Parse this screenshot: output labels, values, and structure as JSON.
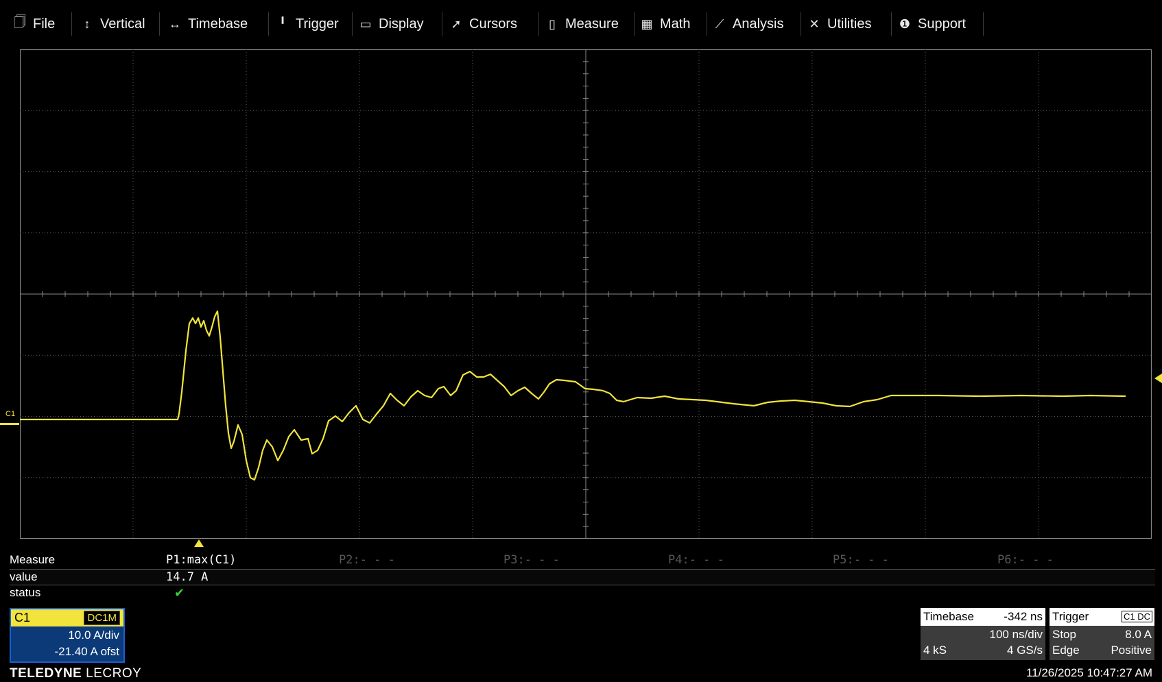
{
  "menu": {
    "items": [
      {
        "label": "File",
        "icon": "file-icon",
        "glyph": "🗍"
      },
      {
        "label": "Vertical",
        "icon": "vertical-arrow-icon",
        "glyph": "↕"
      },
      {
        "label": "Timebase",
        "icon": "horizontal-arrow-icon",
        "glyph": "↔"
      },
      {
        "label": "Trigger",
        "icon": "trigger-icon",
        "glyph": "╹"
      },
      {
        "label": "Display",
        "icon": "display-icon",
        "glyph": "▭"
      },
      {
        "label": "Cursors",
        "icon": "cursor-icon",
        "glyph": "➚"
      },
      {
        "label": "Measure",
        "icon": "measure-icon",
        "glyph": "▯"
      },
      {
        "label": "Math",
        "icon": "calculator-icon",
        "glyph": "▦"
      },
      {
        "label": "Analysis",
        "icon": "analysis-chart-icon",
        "glyph": "⟋"
      },
      {
        "label": "Utilities",
        "icon": "tools-icon",
        "glyph": "✕"
      },
      {
        "label": "Support",
        "icon": "info-icon",
        "glyph": "❶"
      }
    ]
  },
  "waveform": {
    "channel_label": "C1",
    "color": "#f2e43d",
    "grid_divisions_x": 10,
    "grid_divisions_y": 8
  },
  "measure": {
    "header_label": "Measure",
    "value_label": "value",
    "status_label": "status",
    "params": [
      {
        "name": "P1:max(C1)",
        "value": "14.7 A",
        "status": "✔"
      },
      {
        "name": "P2:- - -",
        "value": "",
        "status": ""
      },
      {
        "name": "P3:- - -",
        "value": "",
        "status": ""
      },
      {
        "name": "P4:- - -",
        "value": "",
        "status": ""
      },
      {
        "name": "P5:- - -",
        "value": "",
        "status": ""
      },
      {
        "name": "P6:- - -",
        "value": "",
        "status": ""
      }
    ]
  },
  "channel": {
    "name": "C1",
    "coupling": "DC1M",
    "scale": "10.0 A/div",
    "offset": "-21.40 A ofst"
  },
  "timebase": {
    "label": "Timebase",
    "delay": "-342 ns",
    "scale": "100 ns/div",
    "samples": "4 kS",
    "rate": "4 GS/s"
  },
  "trigger": {
    "label": "Trigger",
    "source_badge": "C1 DC",
    "mode": "Stop",
    "level": "8.0 A",
    "type": "Edge",
    "slope": "Positive"
  },
  "footer": {
    "brand_bold": "TELEDYNE",
    "brand_light": "LECROY",
    "datetime": "11/26/2025 10:47:27 AM"
  }
}
